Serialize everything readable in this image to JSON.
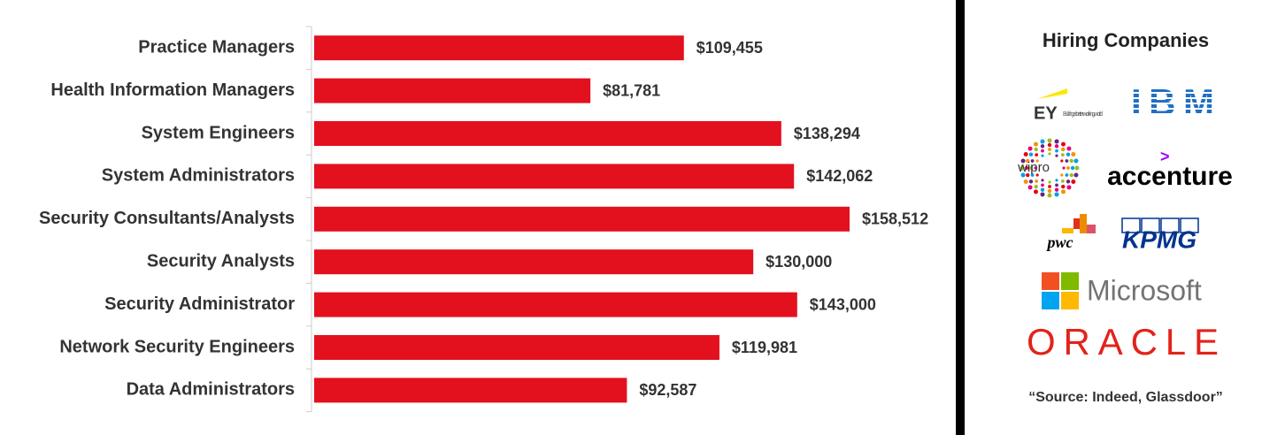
{
  "chart_data": {
    "type": "bar",
    "orientation": "horizontal",
    "color": "#e3101e",
    "categories": [
      "Practice Managers",
      "Health Information Managers",
      "System Engineers",
      "System Administrators",
      "Security Consultants/Analysts",
      "Security Analysts",
      "Security Administrator",
      "Network Security Engineers",
      "Data Administrators"
    ],
    "values": [
      109455,
      81781,
      138294,
      142062,
      158512,
      130000,
      143000,
      119981,
      92587
    ],
    "value_labels": [
      "$109,455",
      "$81,781",
      "$138,294",
      "$142,062",
      "$158,512",
      "$130,000",
      "$143,000",
      "$119,981",
      "$92,587"
    ]
  },
  "sidebar": {
    "title": "Hiring Companies",
    "logos": [
      {
        "text": "EY",
        "tagline": "Building a better working world"
      },
      {
        "text": "IBM"
      },
      {
        "text": "wipro"
      },
      {
        "text": "accenture"
      },
      {
        "text": "pwc"
      },
      {
        "text": "KPMG"
      },
      {
        "text": "Microsoft"
      },
      {
        "text": "ORACLE"
      }
    ],
    "source": "“Source: Indeed, Glassdoor”"
  }
}
